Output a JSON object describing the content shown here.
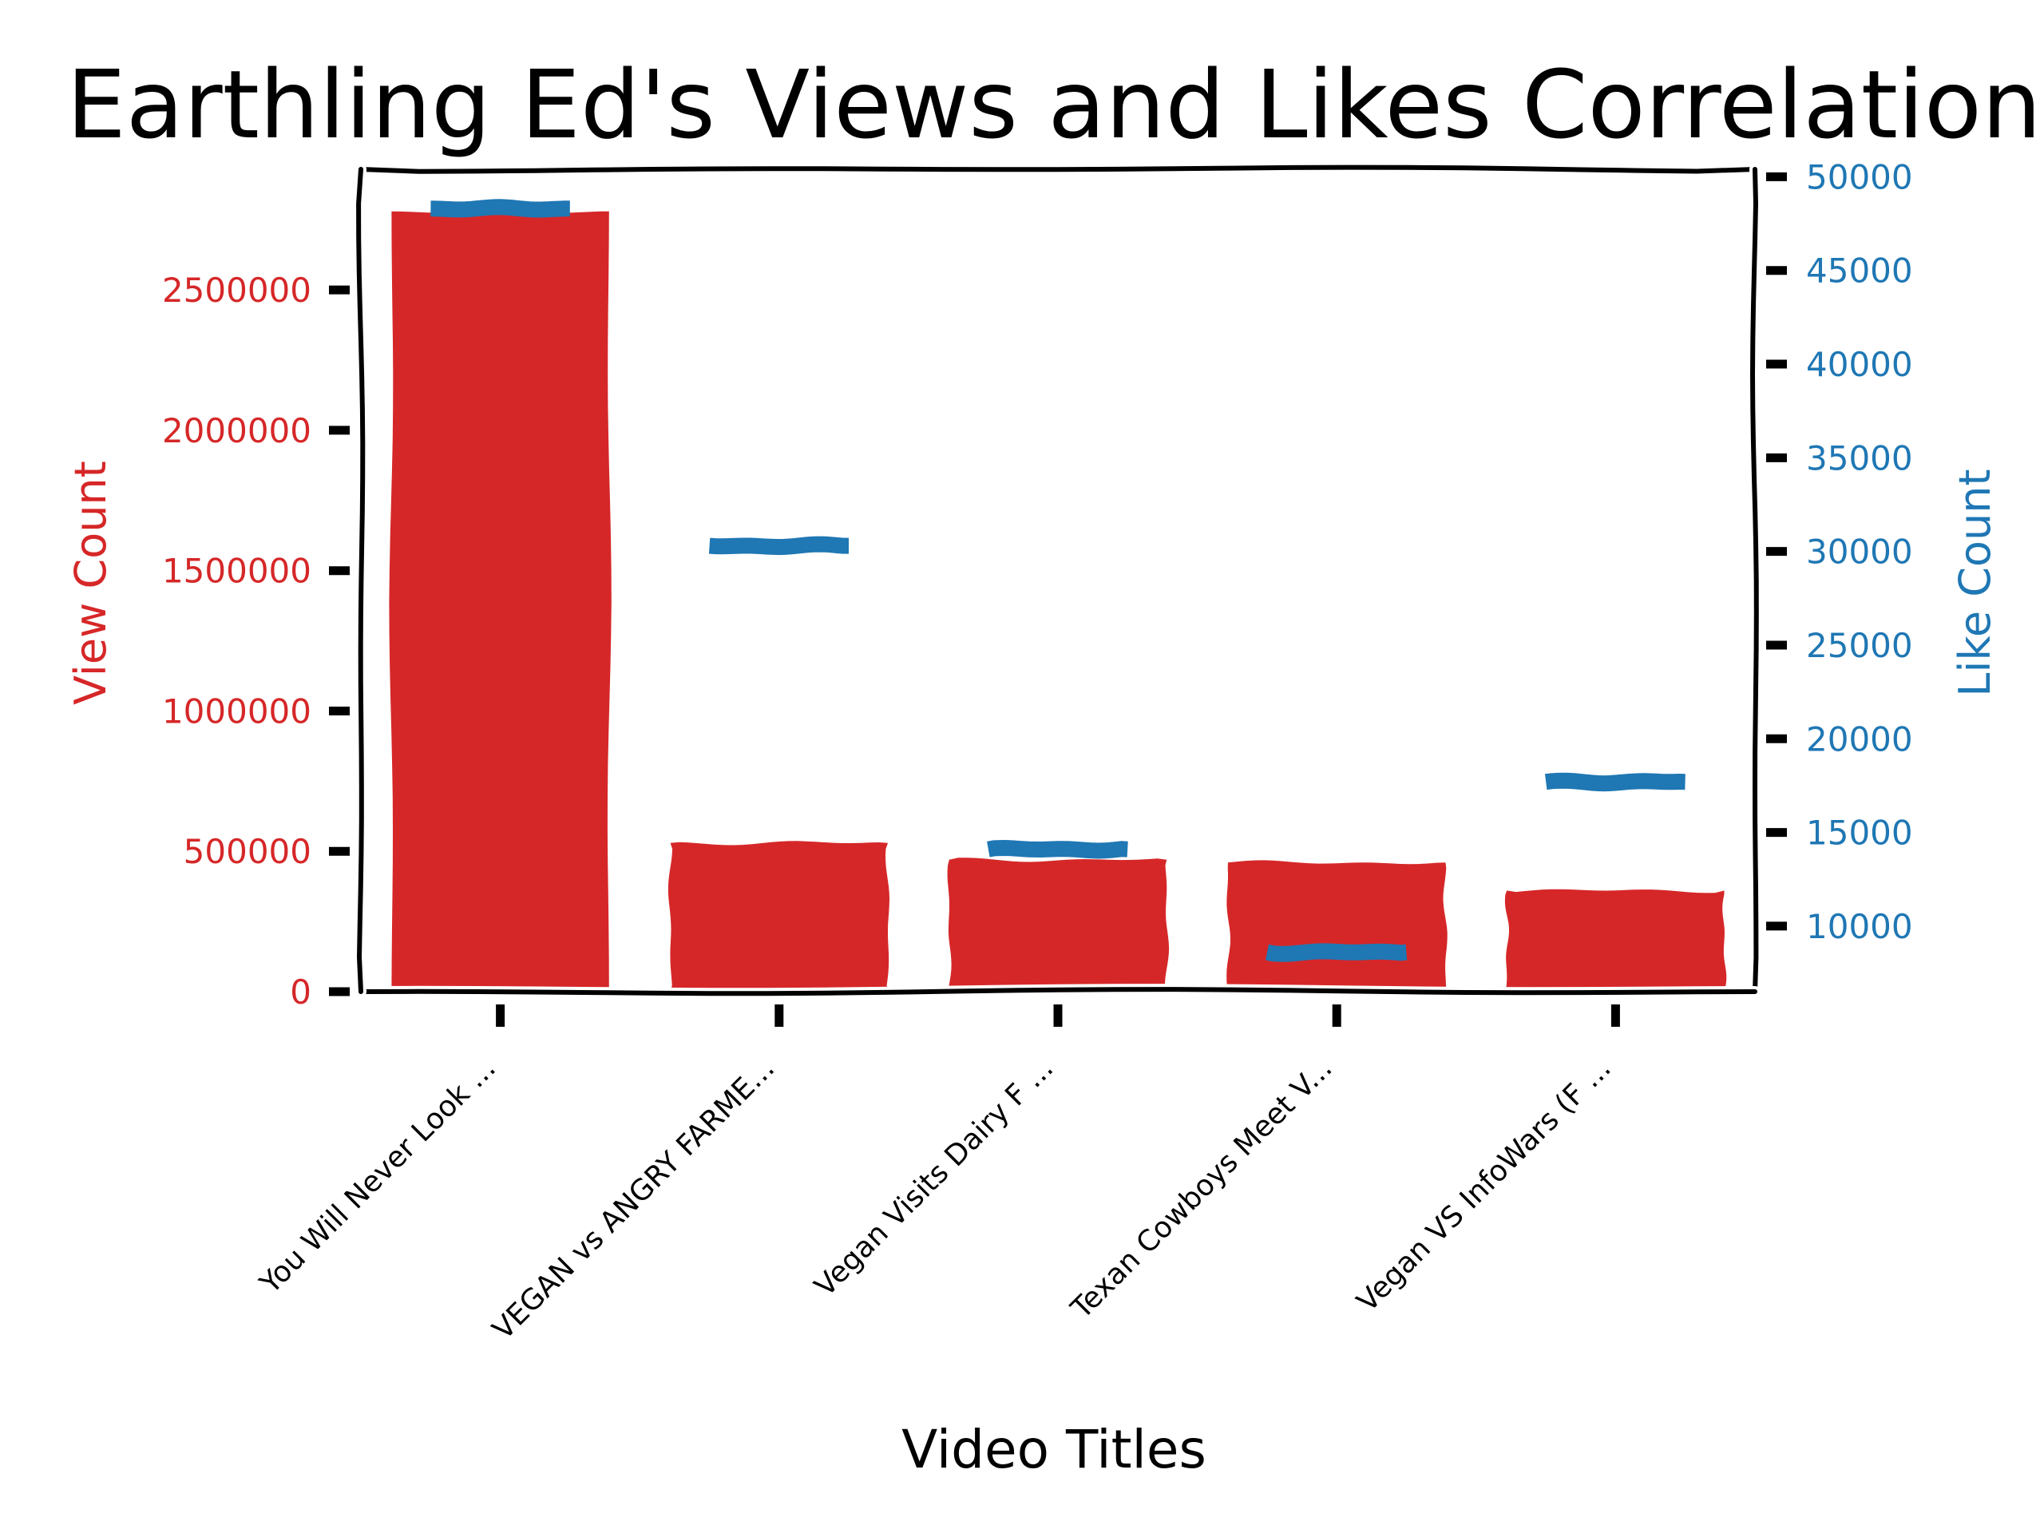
{
  "chart_data": {
    "type": "bar",
    "title": "Earthling Ed's Views and Likes Correlation",
    "xlabel": "Video Titles",
    "ylabel": "View Count",
    "ylabel_right": "Like Count",
    "categories": [
      "You Will Never Look ...",
      "VEGAN vs ANGRY FARME...",
      "Vegan Visits Dairy F ...",
      "Texan Cowboys Meet V...",
      "Vegan VS InfoWars (F ..."
    ],
    "series": [
      {
        "name": "View Count",
        "axis": "left",
        "mark": "bar",
        "color": "#d62728",
        "values": [
          2780000,
          530000,
          470000,
          460000,
          360000
        ]
      },
      {
        "name": "Like Count",
        "axis": "right",
        "mark": "dash",
        "color": "#1f77b4",
        "values": [
          48300,
          30300,
          14100,
          8600,
          17700
        ]
      }
    ],
    "ylim": [
      0,
      2930000
    ],
    "ylim_right": [
      6500,
      50400
    ],
    "yticks": [
      "0",
      "500000",
      "1000000",
      "1500000",
      "2000000",
      "2500000"
    ],
    "yticks_right": [
      "10000",
      "15000",
      "20000",
      "25000",
      "30000",
      "35000",
      "40000",
      "45000",
      "50000"
    ],
    "grid": false,
    "style": "xkcd"
  }
}
